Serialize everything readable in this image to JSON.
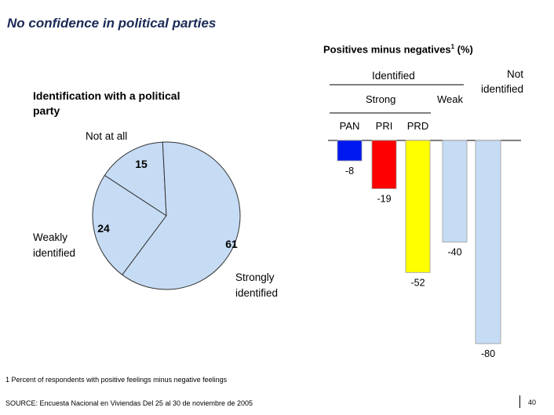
{
  "page": {
    "title": "No confidence in political parties",
    "footnote": "1 Percent of respondents with positive feelings minus negative feelings",
    "source": "SOURCE: Encuesta Nacional en Viviendas Del 25 al 30 de noviembre de 2005",
    "page_number": "40"
  },
  "chart_data": [
    {
      "type": "pie",
      "title": "Identification with a political party",
      "categories": [
        "Not at all",
        "Weakly identified",
        "Strongly identified"
      ],
      "values": [
        15,
        24,
        61
      ],
      "color": "#c6dcf5"
    },
    {
      "type": "bar",
      "title": "Positives minus negatives",
      "title_suffix": "1",
      "title_unit": "(%)",
      "group_labels": {
        "identified": "Identified",
        "strong": "Strong",
        "weak": "Weak",
        "not_identified": "Not identified"
      },
      "categories": [
        "PAN",
        "PRI",
        "PRD",
        "Weak",
        "Not identified"
      ],
      "category_labels": [
        "PAN",
        "PRI",
        "PRD",
        "",
        ""
      ],
      "values": [
        -8,
        -19,
        -52,
        -40,
        -80
      ],
      "value_labels": [
        "-8",
        "-19",
        "-52",
        "-40",
        "-80"
      ],
      "colors": [
        "#0018f0",
        "#ff0000",
        "#ffff00",
        "#c6dcf5",
        "#c6dcf5"
      ],
      "ylim": [
        -80,
        0
      ]
    }
  ]
}
